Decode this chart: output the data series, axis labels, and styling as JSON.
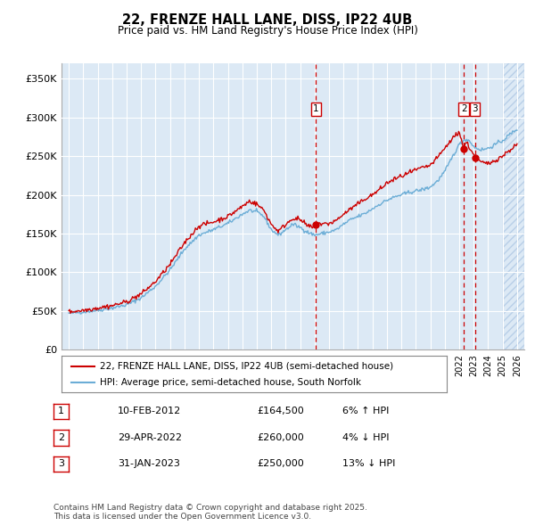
{
  "title": "22, FRENZE HALL LANE, DISS, IP22 4UB",
  "subtitle": "Price paid vs. HM Land Registry's House Price Index (HPI)",
  "background_color": "#dce9f5",
  "plot_bg_color": "#dce9f5",
  "legend_line1": "22, FRENZE HALL LANE, DISS, IP22 4UB (semi-detached house)",
  "legend_line2": "HPI: Average price, semi-detached house, South Norfolk",
  "transactions": [
    {
      "label": "1",
      "date": "10-FEB-2012",
      "price": "£164,500",
      "pct": "6% ↑ HPI",
      "x_year": 2012.1,
      "y": 164500
    },
    {
      "label": "2",
      "date": "29-APR-2022",
      "price": "£260,000",
      "pct": "4% ↓ HPI",
      "x_year": 2022.33,
      "y": 260000
    },
    {
      "label": "3",
      "date": "31-JAN-2023",
      "price": "£250,000",
      "pct": "13% ↓ HPI",
      "x_year": 2023.08,
      "y": 250000
    }
  ],
  "footer": "Contains HM Land Registry data © Crown copyright and database right 2025.\nThis data is licensed under the Open Government Licence v3.0.",
  "yticks": [
    0,
    50000,
    100000,
    150000,
    200000,
    250000,
    300000,
    350000
  ],
  "ylabels": [
    "£0",
    "£50K",
    "£100K",
    "£150K",
    "£200K",
    "£250K",
    "£300K",
    "£350K"
  ],
  "xlim": [
    1994.5,
    2026.5
  ],
  "ylim": [
    0,
    370000
  ],
  "hpi_color": "#6badd6",
  "price_color": "#cc0000",
  "dashed_color": "#cc0000",
  "label_box_color": "#cc0000",
  "hatch_start": 2025.0
}
